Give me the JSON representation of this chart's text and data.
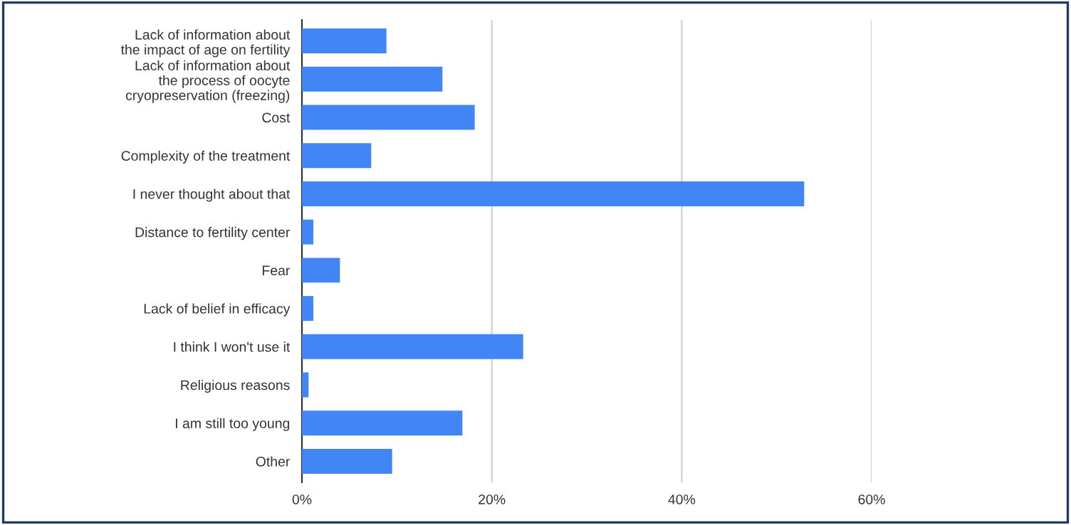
{
  "chart_data": {
    "type": "bar",
    "orientation": "horizontal",
    "categories": [
      "Lack of information about\nthe impact of age on fertility",
      "Lack of information about\nthe process of oocyte\ncryopreservation (freezing)",
      "Cost",
      "Complexity of the treatment",
      "I never thought about that",
      "Distance to fertility center",
      "Fear",
      "Lack of belief in efficacy",
      "I think I won't use it",
      "Religious reasons",
      "I am still too young",
      "Other"
    ],
    "values": [
      8.9,
      14.8,
      18.2,
      7.3,
      52.9,
      1.2,
      4.0,
      1.2,
      23.3,
      0.7,
      16.9,
      9.5
    ],
    "color": "#4285f4",
    "xlim": [
      0,
      60
    ],
    "xticks": [
      {
        "value": 0,
        "label": "0%"
      },
      {
        "value": 20,
        "label": "20%"
      },
      {
        "value": 40,
        "label": "40%"
      },
      {
        "value": 60,
        "label": "60%"
      }
    ],
    "grid": "x",
    "legend": false
  }
}
